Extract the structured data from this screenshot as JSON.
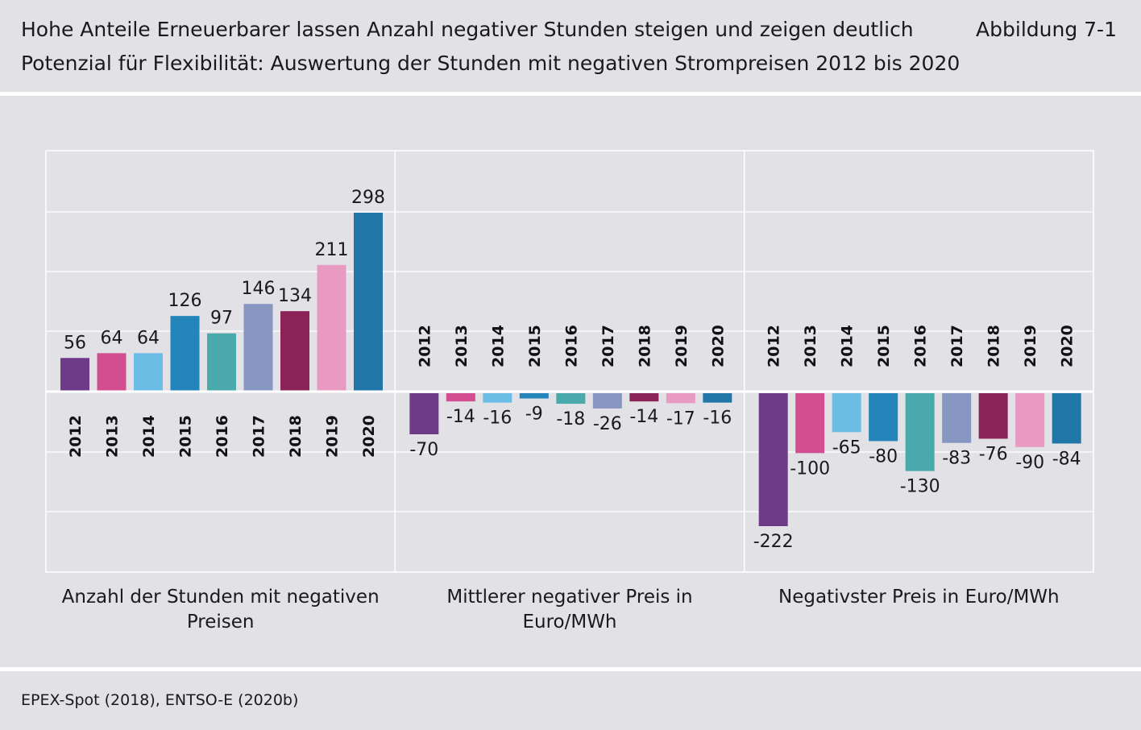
{
  "header": {
    "title_line1": "Hohe Anteile Erneuerbarer lassen Anzahl negativer Stunden steigen und zeigen deutlich",
    "title_line2": "Potenzial für Flexibilität: Auswertung der Stunden mit negativen Strompreisen 2012 bis 2020",
    "figure_label": "Abbildung 7-1"
  },
  "footer": {
    "source": "EPEX-Spot (2018), ENTSO-E (2020b)"
  },
  "chart_data": {
    "type": "bar",
    "grid": true,
    "legend": "none",
    "categories": [
      "2012",
      "2013",
      "2014",
      "2015",
      "2016",
      "2017",
      "2018",
      "2019",
      "2020"
    ],
    "colors": [
      "#6f3a87",
      "#d24e91",
      "#6bbde6",
      "#2385b9",
      "#4aa9ab",
      "#8797c2",
      "#8b2258",
      "#e89ac2",
      "#1f76a7"
    ],
    "panels": [
      {
        "name": "Anzahl der Stunden mit negativen Preisen",
        "values": [
          56,
          64,
          64,
          126,
          97,
          146,
          134,
          211,
          298
        ],
        "labels": [
          "56",
          "64",
          "64",
          "126",
          "97",
          "146",
          "134",
          "211",
          "298"
        ]
      },
      {
        "name": "Mittlerer negativer Preis in Euro/MWh",
        "values": [
          -70,
          -14,
          -16,
          -9,
          -18,
          -26,
          -14,
          -17,
          -16
        ],
        "labels": [
          "-70",
          "-14",
          "-16",
          "-9",
          "-18",
          "-26",
          "-14",
          "-17",
          "-16"
        ]
      },
      {
        "name": "Negativster Preis in Euro/MWh",
        "values": [
          -222,
          -100,
          -65,
          -80,
          -130,
          -83,
          -76,
          -90,
          -84
        ],
        "labels": [
          "-222",
          "-100",
          "-65",
          "-80",
          "-130",
          "-83",
          "-76",
          "-90",
          "-84"
        ]
      }
    ]
  }
}
